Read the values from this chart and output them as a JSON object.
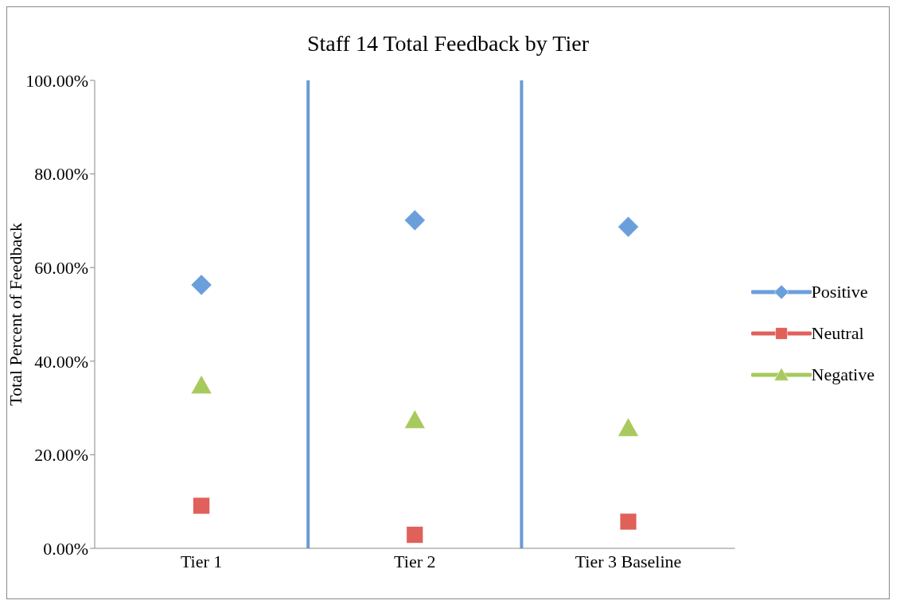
{
  "chart_data": {
    "type": "scatter",
    "title": "Staff 14 Total Feedback by Tier",
    "ylabel": "Total Percent of Feedback",
    "categories": [
      "Tier 1",
      "Tier 2",
      "Tier 3 Baseline"
    ],
    "ylim": [
      0,
      100
    ],
    "yticks": [
      {
        "value": 0,
        "label": "0.00%"
      },
      {
        "value": 20,
        "label": "20.00%"
      },
      {
        "value": 40,
        "label": "40.00%"
      },
      {
        "value": 60,
        "label": "60.00%"
      },
      {
        "value": 80,
        "label": "80.00%"
      },
      {
        "value": 100,
        "label": "100.00%"
      }
    ],
    "series": [
      {
        "name": "Positive",
        "color": "#6b9fdc",
        "marker": "diamond",
        "values": [
          56.3,
          70.1,
          68.7
        ]
      },
      {
        "name": "Neutral",
        "color": "#e0605a",
        "marker": "square",
        "values": [
          9.1,
          2.9,
          5.7
        ]
      },
      {
        "name": "Negative",
        "color": "#a8c95e",
        "marker": "triangle",
        "values": [
          34.8,
          27.4,
          25.7
        ]
      }
    ],
    "grid": false,
    "legend": "right"
  }
}
